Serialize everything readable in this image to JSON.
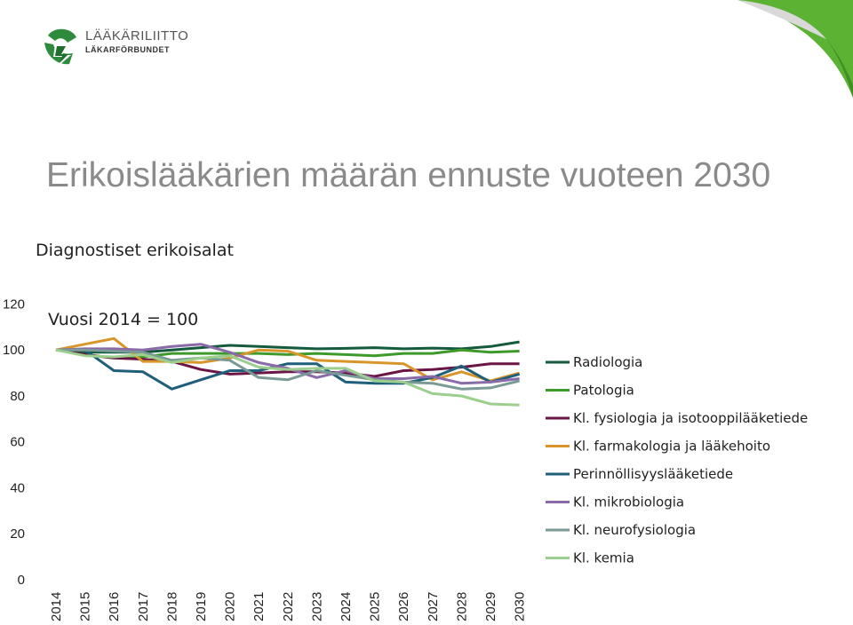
{
  "brand": {
    "name": "LÄÄKÄRILIITTO",
    "subname": "LÄKARFÖRBUNDET"
  },
  "slide": {
    "title": "Erikoislääkärien määrän ennuste vuoteen 2030",
    "subtitle": "Diagnostiset erikoisalat"
  },
  "colors": {
    "brand_green": "#2e8b3e",
    "corner_green": "#5cb233",
    "title_gray": "#8a8a8a"
  },
  "chart_data": {
    "type": "line",
    "title": "",
    "annotation": "Vuosi 2014 = 100",
    "xlabel": "",
    "ylabel": "",
    "ylim": [
      0,
      120
    ],
    "yticks": [
      0,
      20,
      40,
      60,
      80,
      100,
      120
    ],
    "grid": false,
    "legend_position": "right",
    "x": [
      2014,
      2015,
      2016,
      2017,
      2018,
      2019,
      2020,
      2021,
      2022,
      2023,
      2024,
      2025,
      2026,
      2027,
      2028,
      2029,
      2030
    ],
    "series": [
      {
        "name": "Radiologia",
        "color": "#145a3c",
        "values": [
          100,
          99,
          99,
          99,
          100,
          101,
          102,
          101.5,
          101,
          100.5,
          100.7,
          101,
          100.5,
          100.8,
          100.5,
          101.5,
          103.5
        ]
      },
      {
        "name": "Patologia",
        "color": "#3f9a2c",
        "values": [
          100,
          98,
          96.5,
          97,
          98.5,
          98.5,
          98.5,
          98.5,
          98,
          98.5,
          98,
          97.5,
          98.5,
          98.5,
          100,
          99,
          99.5
        ]
      },
      {
        "name": "Kl. fysiologia ja isotooppilääketiede",
        "color": "#6a1545",
        "values": [
          100,
          98,
          96.5,
          96,
          95,
          91.5,
          89.5,
          90,
          90.5,
          90.5,
          90,
          88.5,
          91,
          91.5,
          92.5,
          94,
          94
        ]
      },
      {
        "name": "Kl. farmakologia ja lääkehoito",
        "color": "#d8962a",
        "values": [
          100,
          102.5,
          105,
          95,
          95,
          94.5,
          96.5,
          100,
          99.5,
          95.5,
          95,
          94.5,
          94,
          87,
          90.5,
          86.5,
          90
        ]
      },
      {
        "name": "Perinnöllisyyslääketiede",
        "color": "#1f5f7a",
        "values": [
          100,
          100,
          91,
          90.5,
          83,
          87,
          91,
          91,
          94,
          94,
          86,
          85.5,
          85.5,
          88,
          93,
          86,
          89.5
        ]
      },
      {
        "name": "Kl. mikrobiologia",
        "color": "#8a6aa8",
        "values": [
          100,
          100.5,
          100.5,
          100,
          101.5,
          102.5,
          99,
          94.5,
          92,
          88,
          91,
          87.5,
          87.5,
          88.5,
          85.5,
          86,
          87.5
        ]
      },
      {
        "name": "Kl. neurofysiologia",
        "color": "#7a9a96",
        "values": [
          100,
          100,
          99.5,
          99,
          95.5,
          96.5,
          95.5,
          88,
          87,
          91,
          89,
          87,
          86,
          85.5,
          83,
          83.5,
          86.5
        ]
      },
      {
        "name": "Kl. kemia",
        "color": "#9ccf8e",
        "values": [
          100,
          97.5,
          97,
          98,
          94.5,
          96.5,
          97.5,
          92.5,
          91.5,
          92,
          92,
          86.5,
          86,
          81,
          80,
          76.5,
          76
        ]
      }
    ]
  }
}
